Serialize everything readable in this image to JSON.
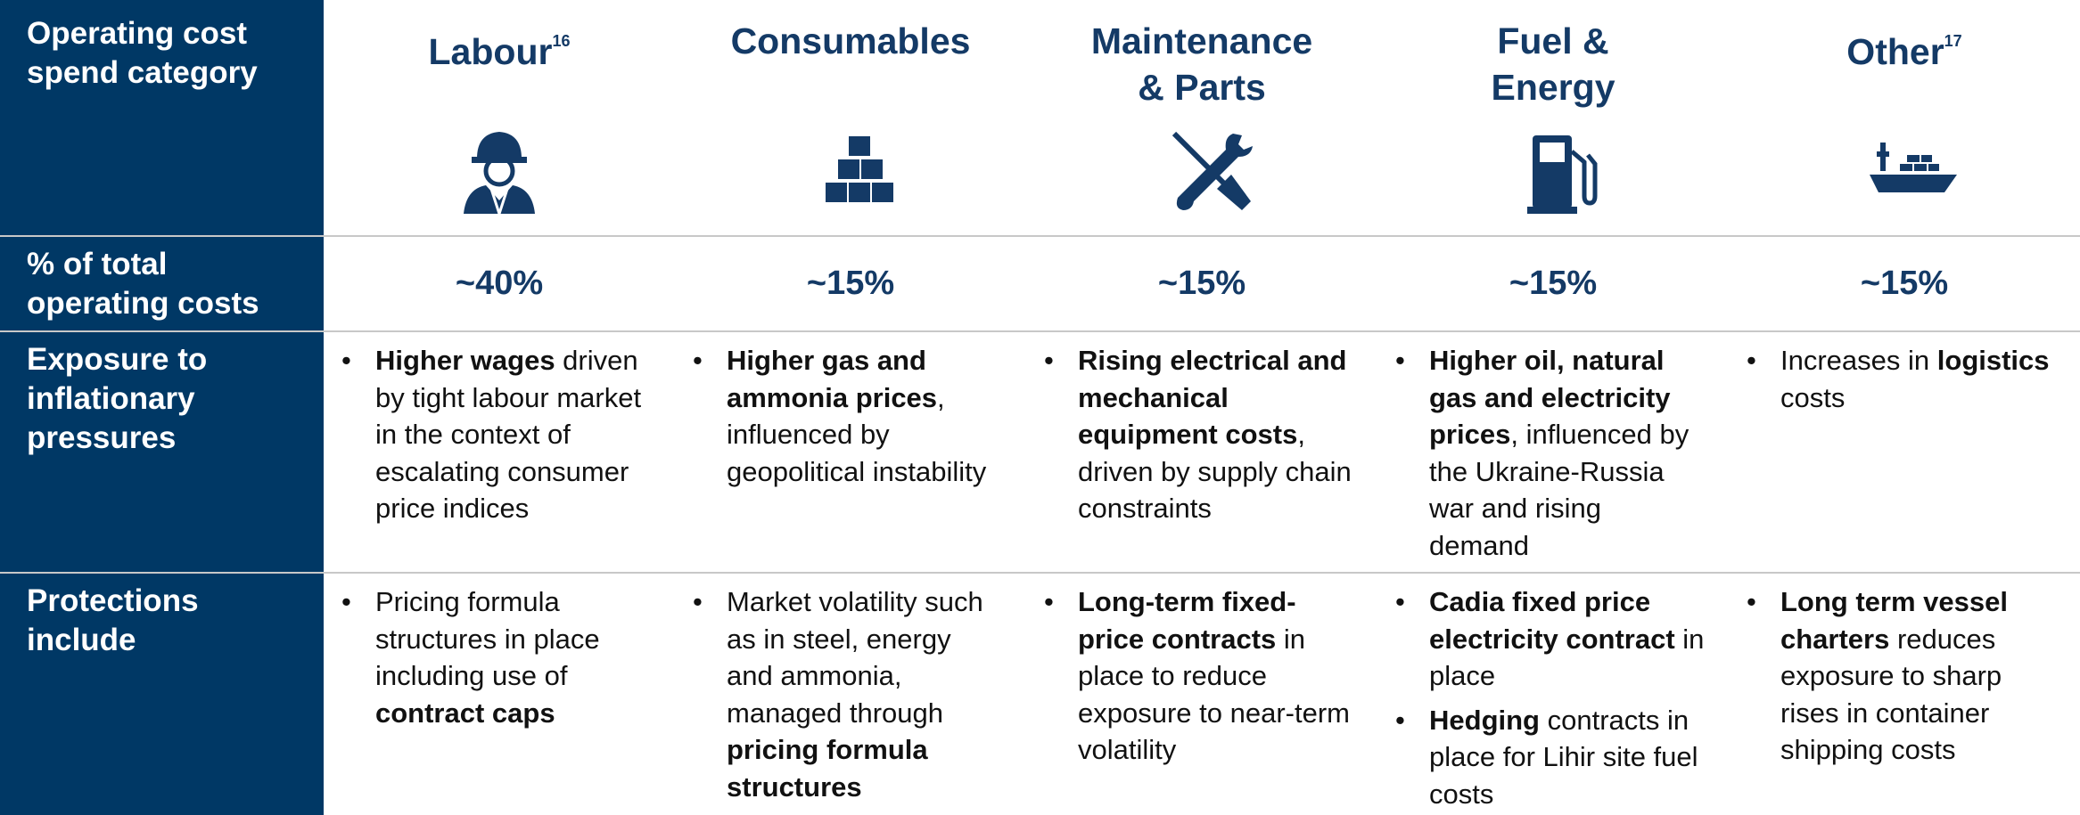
{
  "row_labels": [
    "Operating cost spend category",
    "% of total operating costs",
    "Exposure to inflationary pressures",
    "Protections include"
  ],
  "columns": [
    {
      "name": [
        "Labour"
      ],
      "note": "16",
      "share": "~40%",
      "exposure": [
        [
          {
            "text": "Higher wages",
            "bold": true
          },
          {
            "text": " driven by tight labour market in the context of escalating consumer price indices"
          }
        ]
      ],
      "protections": [
        [
          {
            "text": "Pricing formula structures in place including use of "
          },
          {
            "text": "contract caps",
            "bold": true
          }
        ]
      ]
    },
    {
      "name": [
        "Consumables"
      ],
      "share": "~15%",
      "exposure": [
        [
          {
            "text": "Higher gas and ammonia prices",
            "bold": true
          },
          {
            "text": ", influenced by geopolitical instability"
          }
        ]
      ],
      "protections": [
        [
          {
            "text": "Market volatility such as in steel, energy and ammonia, managed through "
          },
          {
            "text": "pricing formula structures",
            "bold": true
          }
        ]
      ]
    },
    {
      "name": [
        "Maintenance",
        "& Parts"
      ],
      "share": "~15%",
      "exposure": [
        [
          {
            "text": "Rising electrical and mechanical equipment costs",
            "bold": true
          },
          {
            "text": ", driven by supply chain constraints"
          }
        ]
      ],
      "protections": [
        [
          {
            "text": "Long-term fixed-price contracts",
            "bold": true
          },
          {
            "text": " in place to reduce exposure to near-term volatility"
          }
        ]
      ]
    },
    {
      "name": [
        "Fuel &",
        "Energy"
      ],
      "share": "~15%",
      "exposure": [
        [
          {
            "text": "Higher oil, natural gas and electricity prices",
            "bold": true
          },
          {
            "text": ", influenced by the Ukraine-Russia war and rising demand"
          }
        ]
      ],
      "protections": [
        [
          {
            "text": "Cadia fixed price electricity contract",
            "bold": true
          },
          {
            "text": " in place"
          }
        ],
        [
          {
            "text": "Hedging",
            "bold": true
          },
          {
            "text": " contracts in place for Lihir site fuel costs"
          }
        ]
      ]
    },
    {
      "name": [
        "Other"
      ],
      "note": "17",
      "share": "~15%",
      "exposure": [
        [
          {
            "text": "Increases in "
          },
          {
            "text": "logistics",
            "bold": true
          },
          {
            "text": " costs"
          }
        ]
      ],
      "protections": [
        [
          {
            "text": "Long term vessel charters",
            "bold": true
          },
          {
            "text": " reduces exposure to sharp rises in container shipping costs"
          }
        ]
      ]
    }
  ]
}
